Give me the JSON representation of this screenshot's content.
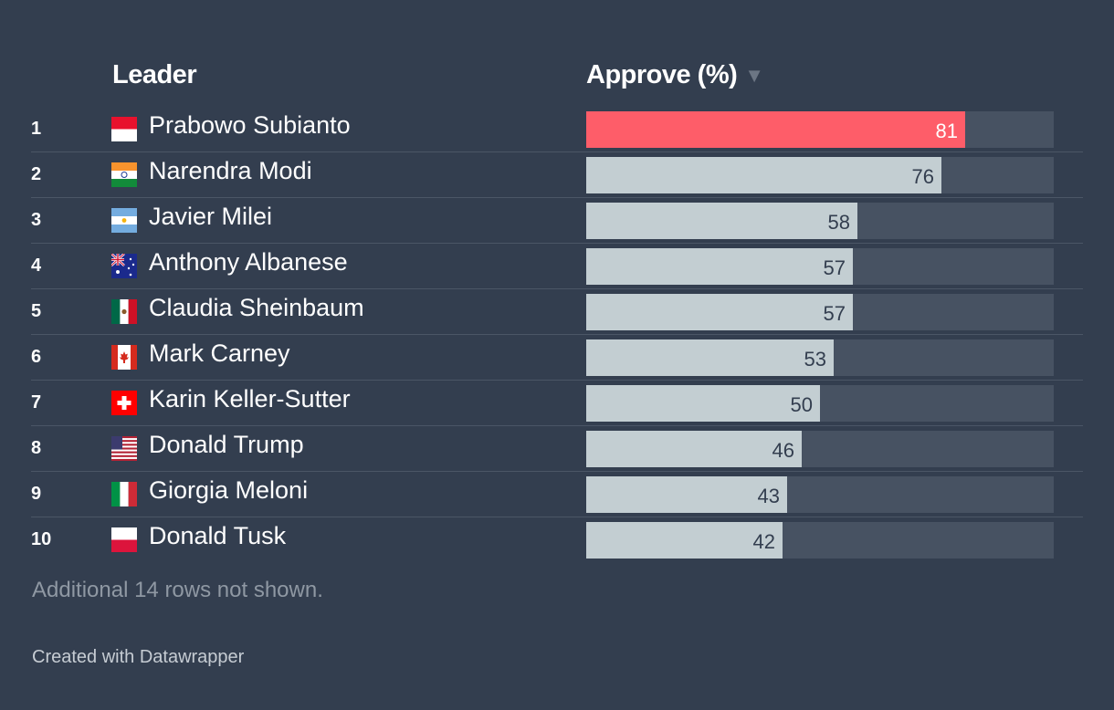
{
  "header": {
    "leader_label": "Leader",
    "approve_label": "Approve (%)",
    "sort_glyph": "▼"
  },
  "colors": {
    "background": "#333e4f",
    "highlight": "#fe5d69",
    "bar": "#c3ced2",
    "track": "#475262"
  },
  "chart_data": {
    "type": "bar",
    "xlim": [
      0,
      100
    ],
    "columns": [
      "Leader",
      "Approve (%)"
    ],
    "highlight_index": 0,
    "rows": [
      {
        "rank": "1",
        "leader": "Prabowo Subianto",
        "flag": "indonesia-flag-icon",
        "approve": 81
      },
      {
        "rank": "2",
        "leader": "Narendra Modi",
        "flag": "india-flag-icon",
        "approve": 76
      },
      {
        "rank": "3",
        "leader": "Javier Milei",
        "flag": "argentina-flag-icon",
        "approve": 58
      },
      {
        "rank": "4",
        "leader": "Anthony Albanese",
        "flag": "australia-flag-icon",
        "approve": 57
      },
      {
        "rank": "5",
        "leader": "Claudia Sheinbaum",
        "flag": "mexico-flag-icon",
        "approve": 57
      },
      {
        "rank": "6",
        "leader": "Mark Carney",
        "flag": "canada-flag-icon",
        "approve": 53
      },
      {
        "rank": "7",
        "leader": "Karin Keller-Sutter",
        "flag": "switzerland-flag-icon",
        "approve": 50
      },
      {
        "rank": "8",
        "leader": "Donald Trump",
        "flag": "usa-flag-icon",
        "approve": 46
      },
      {
        "rank": "9",
        "leader": "Giorgia Meloni",
        "flag": "italy-flag-icon",
        "approve": 43
      },
      {
        "rank": "10",
        "leader": "Donald Tusk",
        "flag": "poland-flag-icon",
        "approve": 42
      }
    ]
  },
  "footer": {
    "note": "Additional 14 rows not shown.",
    "credit": "Created with Datawrapper"
  }
}
